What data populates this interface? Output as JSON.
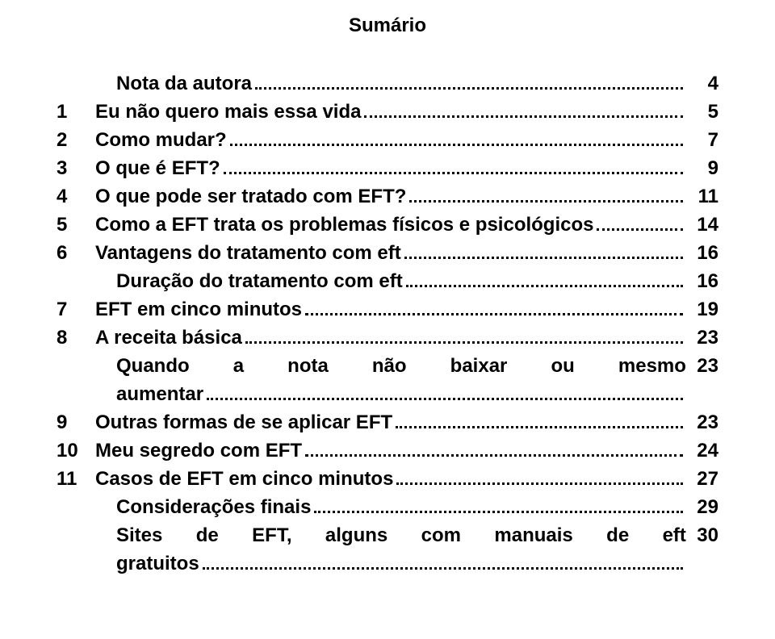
{
  "title": "Sumário",
  "colors": {
    "text": "#000000",
    "background": "#ffffff",
    "leader": "#000000"
  },
  "typography": {
    "font_family": "Arial, Helvetica, sans-serif",
    "font_size_pt": 18,
    "font_weight": 700
  },
  "entries": [
    {
      "num": "",
      "label": "Nota da autora",
      "page": "4",
      "indent": 1
    },
    {
      "num": "1",
      "label": "Eu não quero mais essa vida",
      "page": "5",
      "indent": 0
    },
    {
      "num": "2",
      "label": "Como mudar?",
      "page": "7",
      "indent": 0
    },
    {
      "num": "3",
      "label": "O que é EFT?",
      "page": "9",
      "indent": 0
    },
    {
      "num": "4",
      "label": "O que pode ser tratado com EFT?",
      "page": "11",
      "indent": 0
    },
    {
      "num": "5",
      "label": "Como a EFT trata os problemas físicos e psicológicos",
      "page": "14",
      "indent": 0
    },
    {
      "num": "6",
      "label": "Vantagens do tratamento com eft",
      "page": "16",
      "indent": 0
    },
    {
      "num": "",
      "label": "Duração do tratamento com eft",
      "page": "16",
      "indent": 1
    },
    {
      "num": "7",
      "label": "EFT em cinco minutos",
      "page": "19",
      "indent": 0
    },
    {
      "num": "8",
      "label": "A receita básica",
      "page": "23",
      "indent": 0
    },
    {
      "num": "",
      "justified": [
        "Quando",
        "a",
        "nota",
        "não",
        "baixar",
        "ou",
        "mesmo"
      ],
      "page": "23",
      "indent": 1,
      "no_leader": true
    },
    {
      "num": "",
      "label": "aumentar",
      "page": "",
      "indent": 1
    },
    {
      "num": "9",
      "label": "Outras formas de se aplicar EFT",
      "page": "23",
      "indent": 0
    },
    {
      "num": "10",
      "label": "Meu segredo com EFT",
      "page": "24",
      "indent": 0
    },
    {
      "num": "11",
      "label": "Casos de EFT em cinco minutos",
      "page": "27",
      "indent": 0
    },
    {
      "num": "",
      "label": "Considerações finais",
      "page": "29",
      "indent": 1
    },
    {
      "num": "",
      "justified": [
        "Sites",
        "de",
        "EFT,",
        "alguns",
        "com",
        "manuais",
        "de",
        "eft"
      ],
      "page": "30",
      "indent": 1,
      "no_leader": true
    },
    {
      "num": "",
      "label": "gratuitos",
      "page": "",
      "indent": 1
    }
  ]
}
